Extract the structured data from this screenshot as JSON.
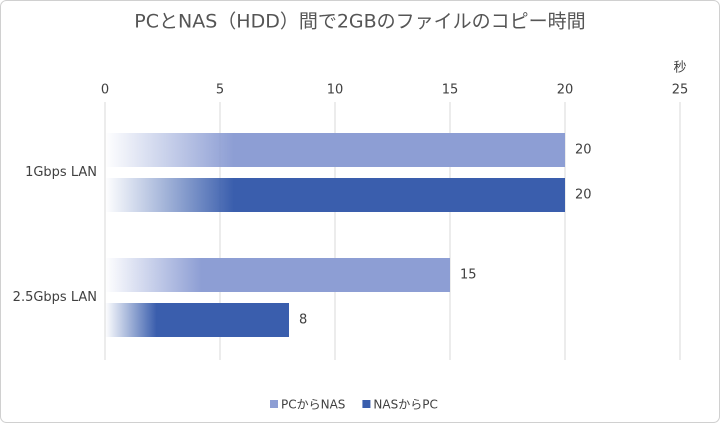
{
  "chart_data": {
    "type": "bar",
    "orientation": "horizontal",
    "title": "PCとNAS（HDD）間で2GBのファイルのコピー時間",
    "x_unit_label": "秒",
    "categories": [
      "1Gbps LAN",
      "2.5Gbps LAN"
    ],
    "series": [
      {
        "name": "PCからNAS",
        "color": "#8d9ed4",
        "values": [
          20,
          15
        ]
      },
      {
        "name": "NASからPC",
        "color": "#3a5ead",
        "values": [
          20,
          8
        ]
      }
    ],
    "xlim": [
      0,
      25
    ],
    "xticks": [
      0,
      5,
      10,
      15,
      20,
      25
    ],
    "grid": true,
    "legend": "bottom"
  }
}
